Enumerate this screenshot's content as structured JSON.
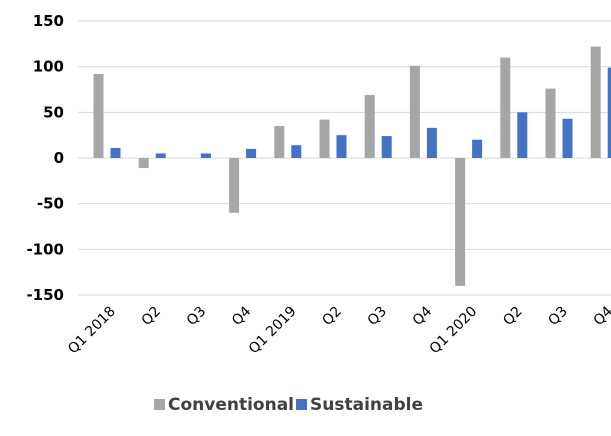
{
  "chart_data": {
    "type": "bar",
    "categories": [
      "Q1 2018",
      "Q2",
      "Q3",
      "Q4",
      "Q1 2019",
      "Q2",
      "Q3",
      "Q4",
      "Q1 2020",
      "Q2",
      "Q3",
      "Q4"
    ],
    "series": [
      {
        "name": "Conventional",
        "color": "#a6a6a6",
        "values": [
          92,
          -11,
          0,
          -60,
          35,
          42,
          69,
          101,
          -140,
          110,
          76,
          122
        ]
      },
      {
        "name": "Sustainable",
        "color": "#4472c4",
        "values": [
          11,
          5,
          5,
          10,
          14,
          25,
          24,
          33,
          20,
          50,
          43,
          99
        ]
      }
    ],
    "ylim": [
      -150,
      150
    ],
    "yticks": [
      -150,
      -100,
      -50,
      0,
      50,
      100,
      150
    ],
    "grid": true,
    "legend": "bottom"
  }
}
